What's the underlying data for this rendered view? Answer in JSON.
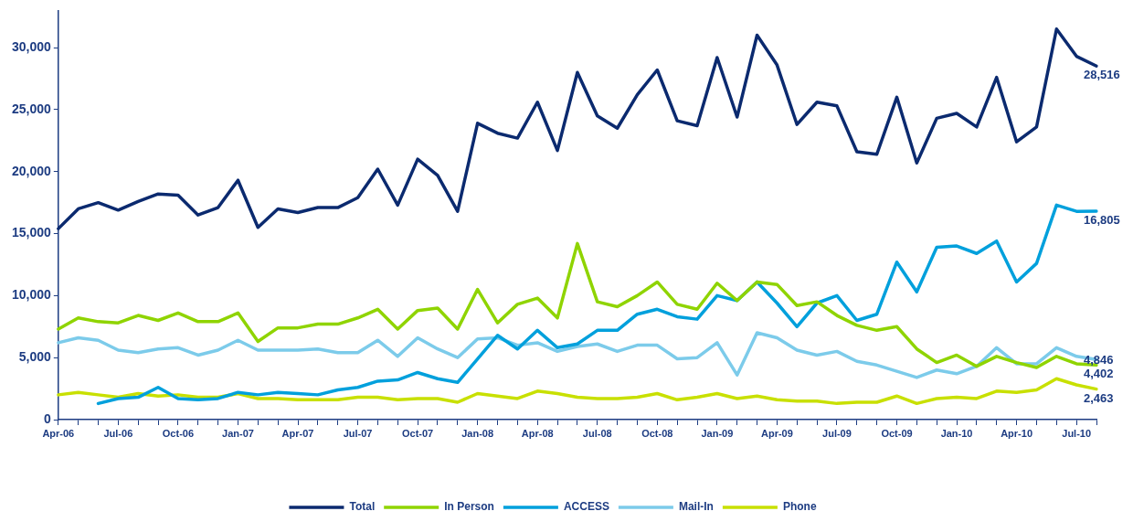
{
  "chart_data": {
    "type": "line",
    "categories": [
      "Apr-06",
      null,
      null,
      "Jul-06",
      null,
      null,
      "Oct-06",
      null,
      null,
      "Jan-07",
      null,
      null,
      "Apr-07",
      null,
      null,
      "Jul-07",
      null,
      null,
      "Oct-07",
      null,
      null,
      "Jan-08",
      null,
      null,
      "Apr-08",
      null,
      null,
      "Jul-08",
      null,
      null,
      "Oct-08",
      null,
      null,
      "Jan-09",
      null,
      null,
      "Apr-09",
      null,
      null,
      "Jul-09",
      null,
      null,
      "Oct-09",
      null,
      null,
      "Jan-10",
      null,
      null,
      "Apr-10",
      null,
      null,
      "Jul-10",
      null
    ],
    "series": [
      {
        "name": "Total",
        "color": "#0b2a6f",
        "values": [
          15400,
          17000,
          17500,
          16900,
          17600,
          18200,
          18100,
          16500,
          17100,
          19300,
          15500,
          17000,
          16700,
          17100,
          17100,
          17900,
          20200,
          17300,
          21000,
          19700,
          16800,
          23900,
          23100,
          22700,
          25600,
          21700,
          28000,
          24500,
          23500,
          26200,
          28200,
          24100,
          23700,
          29200,
          24400,
          31000,
          28600,
          23800,
          25600,
          25300,
          21600,
          21400,
          26000,
          20700,
          24300,
          24700,
          23600,
          27600,
          22400,
          23600,
          31500,
          29300,
          28516
        ],
        "value_labels": [
          null,
          null,
          null,
          null,
          null,
          null,
          null,
          null,
          null,
          null,
          null,
          null,
          null,
          null,
          null,
          null,
          null,
          null,
          null,
          null,
          null,
          null,
          null,
          null,
          null,
          null,
          null,
          null,
          null,
          null,
          null,
          null,
          null,
          null,
          null,
          null,
          null,
          null,
          null,
          null,
          null,
          null,
          null,
          null,
          null,
          null,
          null,
          null,
          null,
          null,
          null,
          null,
          "28,516"
        ]
      },
      {
        "name": "In Person",
        "color": "#8fd400",
        "values": [
          7300,
          8200,
          7900,
          7800,
          8400,
          8000,
          8600,
          7900,
          7900,
          8600,
          6300,
          7400,
          7400,
          7700,
          7700,
          8200,
          8900,
          7300,
          8800,
          9000,
          7300,
          10500,
          7800,
          9300,
          9800,
          8200,
          14200,
          9500,
          9100,
          10000,
          11100,
          9300,
          8900,
          11000,
          9600,
          11100,
          10900,
          9200,
          9500,
          8400,
          7600,
          7200,
          7500,
          5700,
          4600,
          5200,
          4300,
          5100,
          4600,
          4200,
          5100,
          4500,
          4402
        ],
        "value_labels": [
          null,
          null,
          null,
          null,
          null,
          null,
          null,
          null,
          null,
          null,
          null,
          null,
          null,
          null,
          null,
          null,
          null,
          null,
          null,
          null,
          null,
          null,
          null,
          null,
          null,
          null,
          null,
          null,
          null,
          null,
          null,
          null,
          null,
          null,
          null,
          null,
          null,
          null,
          null,
          null,
          null,
          null,
          null,
          null,
          null,
          null,
          null,
          null,
          null,
          null,
          null,
          null,
          "4,402"
        ]
      },
      {
        "name": "ACCESS",
        "color": "#00a0dc",
        "values": [
          null,
          null,
          1300,
          1700,
          1800,
          2600,
          1700,
          1600,
          1700,
          2200,
          2000,
          2200,
          2100,
          2000,
          2400,
          2600,
          3100,
          3200,
          3800,
          3300,
          3000,
          4900,
          6800,
          5700,
          7200,
          5800,
          6100,
          7200,
          7200,
          8500,
          8900,
          8300,
          8100,
          10000,
          9600,
          11100,
          9400,
          7500,
          9400,
          10000,
          8000,
          8500,
          12700,
          10300,
          13900,
          14000,
          13400,
          14400,
          11100,
          12600,
          17300,
          16800,
          16805
        ],
        "value_labels": [
          null,
          null,
          null,
          null,
          null,
          null,
          null,
          null,
          null,
          null,
          null,
          null,
          null,
          null,
          null,
          null,
          null,
          null,
          null,
          null,
          null,
          null,
          null,
          null,
          null,
          null,
          null,
          null,
          null,
          null,
          null,
          null,
          null,
          null,
          null,
          null,
          null,
          null,
          null,
          null,
          null,
          null,
          null,
          null,
          null,
          null,
          null,
          null,
          null,
          null,
          null,
          null,
          "16,805"
        ]
      },
      {
        "name": "Mail-In",
        "color": "#7ccbea",
        "values": [
          6200,
          6600,
          6400,
          5600,
          5400,
          5700,
          5800,
          5200,
          5600,
          6400,
          5600,
          5600,
          5600,
          5700,
          5400,
          5400,
          6400,
          5100,
          6600,
          5700,
          5000,
          6500,
          6600,
          6000,
          6200,
          5500,
          5900,
          6100,
          5500,
          6000,
          6000,
          4900,
          5000,
          6200,
          3600,
          7000,
          6600,
          5600,
          5200,
          5500,
          4700,
          4400,
          3900,
          3400,
          4000,
          3700,
          4300,
          5800,
          4500,
          4500,
          5800,
          5100,
          4846
        ],
        "value_labels": [
          null,
          null,
          null,
          null,
          null,
          null,
          null,
          null,
          null,
          null,
          null,
          null,
          null,
          null,
          null,
          null,
          null,
          null,
          null,
          null,
          null,
          null,
          null,
          null,
          null,
          null,
          null,
          null,
          null,
          null,
          null,
          null,
          null,
          null,
          null,
          null,
          null,
          null,
          null,
          null,
          null,
          null,
          null,
          null,
          null,
          null,
          null,
          null,
          null,
          null,
          null,
          null,
          "4,846"
        ]
      },
      {
        "name": "Phone",
        "color": "#c8e000",
        "values": [
          2000,
          2200,
          2000,
          1800,
          2100,
          1900,
          2000,
          1800,
          1800,
          2100,
          1700,
          1700,
          1600,
          1600,
          1600,
          1800,
          1800,
          1600,
          1700,
          1700,
          1400,
          2100,
          1900,
          1700,
          2300,
          2100,
          1800,
          1700,
          1700,
          1800,
          2100,
          1600,
          1800,
          2100,
          1700,
          1900,
          1600,
          1500,
          1500,
          1300,
          1400,
          1400,
          1900,
          1300,
          1700,
          1800,
          1700,
          2300,
          2200,
          2400,
          3300,
          2800,
          2463
        ],
        "value_labels": [
          null,
          null,
          null,
          null,
          null,
          null,
          null,
          null,
          null,
          null,
          null,
          null,
          null,
          null,
          null,
          null,
          null,
          null,
          null,
          null,
          null,
          null,
          null,
          null,
          null,
          null,
          null,
          null,
          null,
          null,
          null,
          null,
          null,
          null,
          null,
          null,
          null,
          null,
          null,
          null,
          null,
          null,
          null,
          null,
          null,
          null,
          null,
          null,
          null,
          null,
          null,
          null,
          "2,463"
        ]
      }
    ],
    "ylim": [
      0,
      33000
    ],
    "yticks": [
      {
        "value": 0,
        "label": "0"
      },
      {
        "value": 5000,
        "label": "5,000"
      },
      {
        "value": 10000,
        "label": "10,000"
      },
      {
        "value": 15000,
        "label": "15,000"
      },
      {
        "value": 20000,
        "label": "20,000"
      },
      {
        "value": 25000,
        "label": "25,000"
      },
      {
        "value": 30000,
        "label": "30,000"
      }
    ],
    "grid": false,
    "legend": "bottom",
    "marker": "none",
    "line_style": "solid"
  }
}
